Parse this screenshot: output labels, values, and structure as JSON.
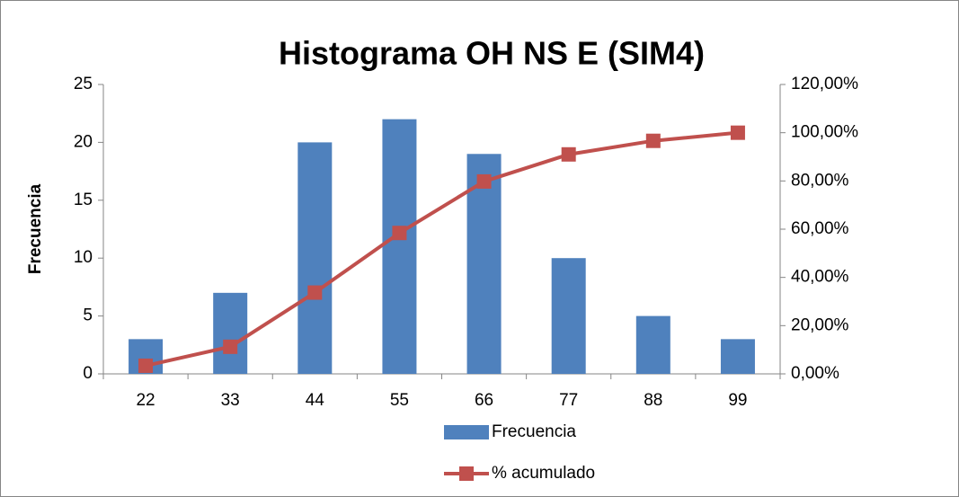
{
  "chart_data": {
    "type": "bar",
    "title": "Histograma OH NS E (SIM4)",
    "y_label": "Frecuencia",
    "categories": [
      "22",
      "33",
      "44",
      "55",
      "66",
      "77",
      "88",
      "99"
    ],
    "series": [
      {
        "name": "Frecuencia",
        "type": "bar",
        "color": "#4f81bd",
        "values": [
          3,
          7,
          20,
          22,
          19,
          10,
          5,
          3
        ]
      },
      {
        "name": "% acumulado",
        "type": "line",
        "axis": "y2",
        "color": "#c0504d",
        "values": [
          3.37,
          11.24,
          33.71,
          58.43,
          79.78,
          91.01,
          96.63,
          100
        ]
      }
    ],
    "ylim": [
      0,
      25
    ],
    "yticks": [
      0,
      5,
      10,
      15,
      20,
      25
    ],
    "y2lim": [
      0,
      120
    ],
    "y2ticks": [
      {
        "value": 0,
        "label": "0,00%"
      },
      {
        "value": 20,
        "label": "20,00%"
      },
      {
        "value": 40,
        "label": "40,00%"
      },
      {
        "value": 60,
        "label": "60,00%"
      },
      {
        "value": 80,
        "label": "80,00%"
      },
      {
        "value": 100,
        "label": "100,00%"
      },
      {
        "value": 120,
        "label": "120,00%"
      }
    ],
    "grid": false,
    "legend": "bottom"
  }
}
